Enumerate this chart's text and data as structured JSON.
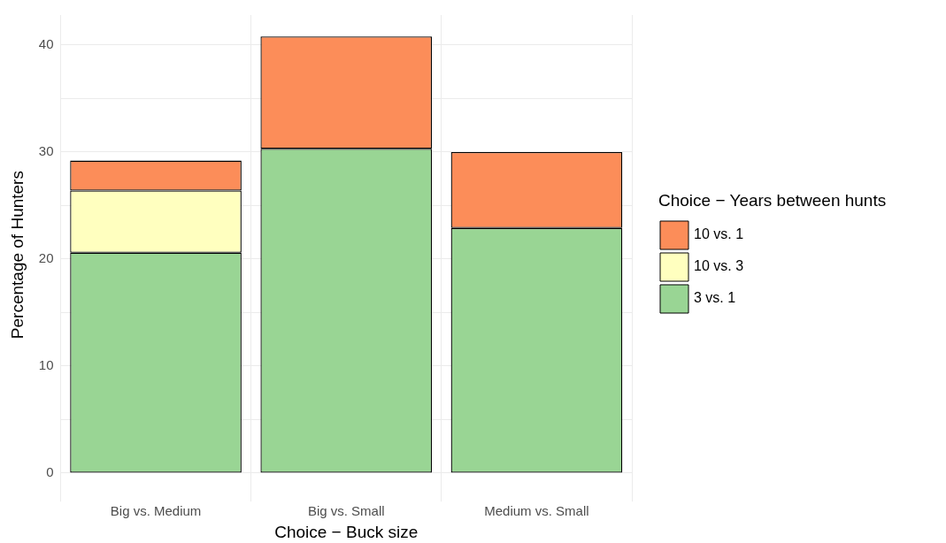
{
  "chart_data": {
    "type": "bar",
    "stacked": true,
    "xlabel": "Choice − Buck size",
    "ylabel": "Percentage of Hunters",
    "legend_title": "Choice − Years between hunts",
    "legend": "right",
    "categories": [
      "Big vs. Medium",
      "Big vs. Small",
      "Medium vs. Small"
    ],
    "series": [
      {
        "name": "3 vs. 1",
        "color": "#99d594",
        "values": [
          20.6,
          30.3,
          22.9
        ]
      },
      {
        "name": "10 vs. 3",
        "color": "#ffffbf",
        "values": [
          5.8,
          0,
          0
        ]
      },
      {
        "name": "10 vs. 1",
        "color": "#fc8d59",
        "values": [
          2.8,
          10.5,
          7.1
        ]
      }
    ],
    "ylim": [
      -2,
      42.8
    ],
    "yticks": [
      0,
      {
        "value": 5,
        "label": null
      },
      10,
      {
        "value": 15,
        "label": null
      },
      20,
      {
        "value": 25,
        "label": null
      },
      30,
      {
        "value": 35,
        "label": null
      },
      40
    ],
    "grid": true
  }
}
